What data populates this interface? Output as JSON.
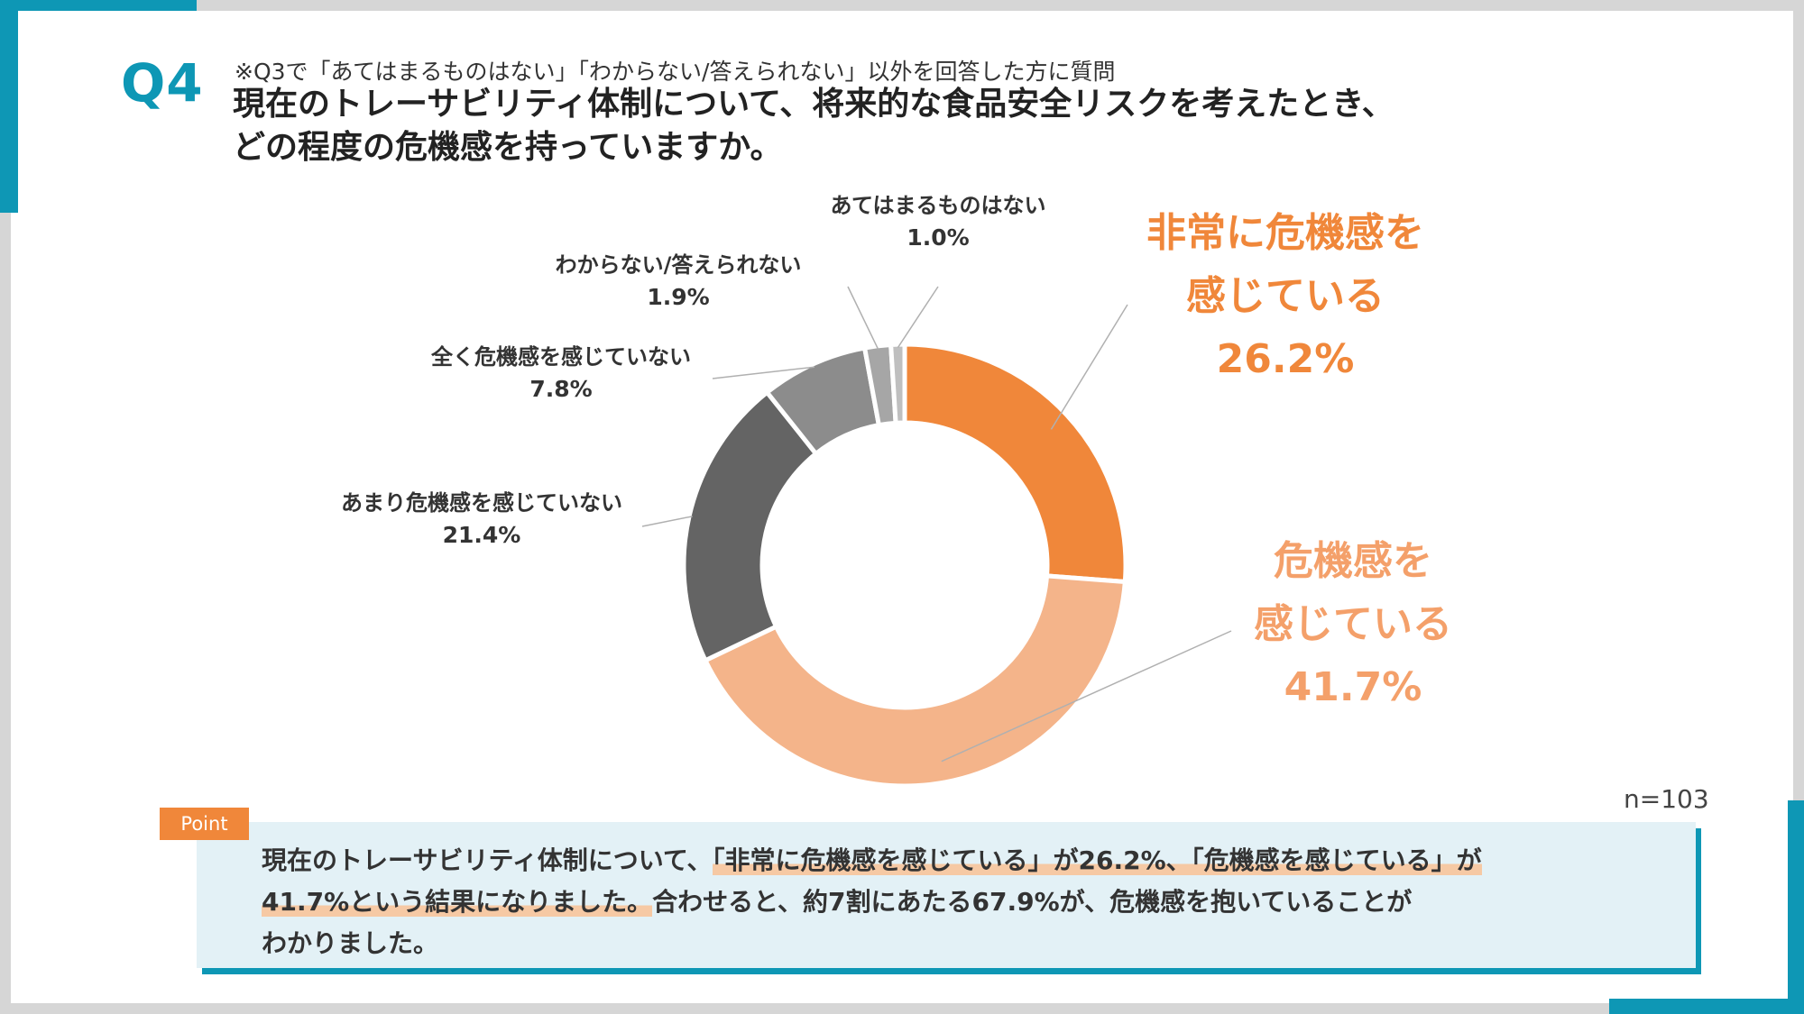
{
  "header": {
    "question_number": "Q4",
    "note": "※Q3で「あてはまるものはない」「わからない/答えられない」以外を回答した方に質問",
    "title_line1": "現在のトレーサビリティ体制について、将来的な食品安全リスクを考えたとき、",
    "title_line2": "どの程度の危機感を持っていますか。"
  },
  "colors": {
    "accent": "#0e97b5",
    "orange": "#f0873a",
    "light_orange": "#f4b48a",
    "dark_gray": "#646464",
    "mid_gray": "#8c8c8c",
    "light_gray": "#a6a6a6",
    "lighter_gray": "#bfbfbf"
  },
  "chart_data": {
    "type": "pie",
    "variant": "donut",
    "title": "",
    "unit": "%",
    "sample_size_label": "n=103",
    "slices": [
      {
        "label": "非常に危機感を感じている",
        "value": 26.2,
        "display": "26.2%",
        "color": "#f0873a"
      },
      {
        "label": "危機感を感じている",
        "value": 41.7,
        "display": "41.7%",
        "color": "#f4b48a"
      },
      {
        "label": "あまり危機感を感じていない",
        "value": 21.4,
        "display": "21.4%",
        "color": "#646464"
      },
      {
        "label": "全く危機感を感じていない",
        "value": 7.8,
        "display": "7.8%",
        "color": "#8c8c8c"
      },
      {
        "label": "わからない/答えられない",
        "value": 1.9,
        "display": "1.9%",
        "color": "#a6a6a6"
      },
      {
        "label": "あてはまるものはない",
        "value": 1.0,
        "display": "1.0%",
        "color": "#bfbfbf"
      }
    ],
    "big_labels": {
      "very_concerned": {
        "line1": "非常に危機感を",
        "line2": "感じている",
        "value": "26.2%"
      },
      "concerned": {
        "line1": "危機感を",
        "line2": "感じている",
        "value": "41.7%"
      }
    }
  },
  "point": {
    "tag": "Point",
    "text_part1": "現在のトレーサビリティ体制について、",
    "text_highlight1": "「非常に危機感を感じている」が26.2%、「危機感を感じている」が",
    "text_highlight2": "41.7%という結果になりました。",
    "text_part2": "合わせると、約7割にあたる67.9%が、危機感を抱いていることが",
    "text_part3": "わかりました。"
  }
}
